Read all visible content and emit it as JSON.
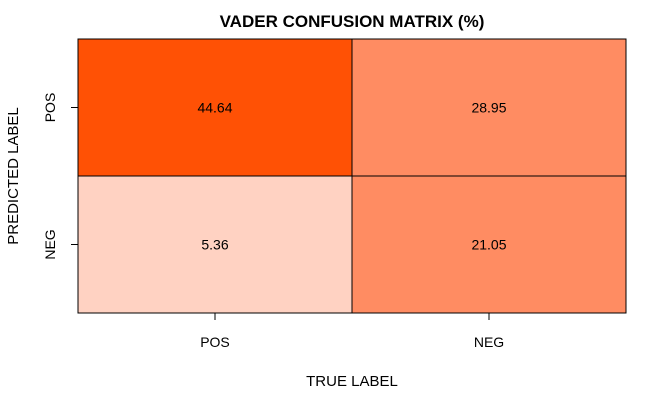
{
  "chart_data": {
    "type": "heatmap",
    "title": "VADER CONFUSION MATRIX (%)",
    "xlabel": "TRUE LABEL",
    "ylabel": "PREDICTED LABEL",
    "x_categories": [
      "POS",
      "NEG"
    ],
    "y_categories": [
      "POS",
      "NEG"
    ],
    "values": [
      [
        44.64,
        28.95
      ],
      [
        5.36,
        21.05
      ]
    ],
    "value_labels": [
      [
        "44.64",
        "28.95"
      ],
      [
        "5.36",
        "21.05"
      ]
    ],
    "cell_colors": [
      [
        "#ff5105",
        "#ff8c62"
      ],
      [
        "#ffd2c2",
        "#ff8c62"
      ]
    ],
    "grid": false,
    "legend": "none"
  }
}
